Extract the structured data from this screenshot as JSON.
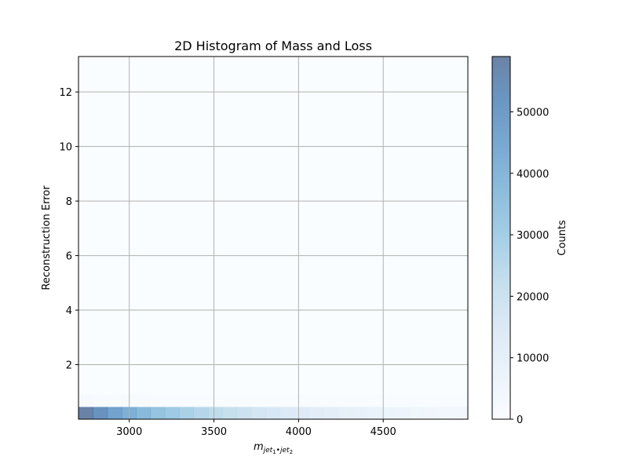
{
  "chart_data": {
    "type": "heatmap",
    "title": "2D Histogram of Mass and Loss",
    "xlabel_base": "m",
    "xlabel_sub_a": "jet",
    "xlabel_sub_a_index": "1",
    "xlabel_sub_sep": "•",
    "xlabel_sub_b": "jet",
    "xlabel_sub_b_index": "2",
    "ylabel": "Reconstruction Error",
    "xlim": [
      2700,
      5000
    ],
    "ylim": [
      0.0,
      13.3
    ],
    "xticks": [
      3000,
      3500,
      4000,
      4500
    ],
    "yticks": [
      2,
      4,
      6,
      8,
      10,
      12
    ],
    "grid": true,
    "colormap": "Blues",
    "alpha": 0.6,
    "colorbar": {
      "label": "Counts",
      "range": [
        0,
        59000
      ],
      "ticks": [
        0,
        10000,
        20000,
        30000,
        40000,
        50000
      ]
    },
    "bins": {
      "x_edges": [
        2700,
        2785,
        2870,
        2955,
        3040,
        3125,
        3210,
        3295,
        3380,
        3465,
        3550,
        3635,
        3720,
        3805,
        3890,
        3975,
        4060,
        4145,
        4230,
        4315,
        4400,
        4485,
        4570,
        4655,
        4740,
        4825,
        4910,
        5000
      ],
      "y_edges": [
        0.0,
        0.45,
        0.9
      ],
      "counts": [
        [
          59000,
          53000,
          47000,
          42000,
          38000,
          34000,
          31000,
          28000,
          25500,
          23000,
          21000,
          19000,
          17000,
          15500,
          14000,
          12500,
          11000,
          10000,
          9000,
          8000,
          7000,
          6200,
          5500,
          4800,
          4200,
          3600,
          3000
        ],
        [
          800,
          700,
          600,
          500,
          450,
          400,
          350,
          300,
          260,
          220,
          200,
          180,
          160,
          140,
          120,
          110,
          100,
          90,
          80,
          70,
          60,
          50,
          40,
          30,
          25,
          20,
          15
        ]
      ]
    }
  }
}
